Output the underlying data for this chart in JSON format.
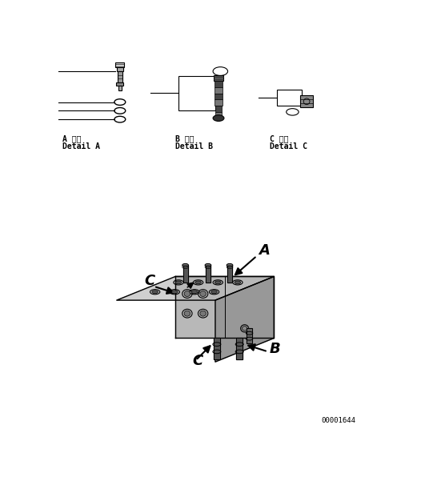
{
  "bg": "#ffffff",
  "fw": 5.41,
  "fh": 6.01,
  "dpi": 100,
  "code": "00001644",
  "label_A1": "A 詳細",
  "label_A2": "Detail A",
  "label_B1": "B 詳細",
  "label_B2": "Detail B",
  "label_C1": "C 詳細",
  "label_C2": "Detail C"
}
